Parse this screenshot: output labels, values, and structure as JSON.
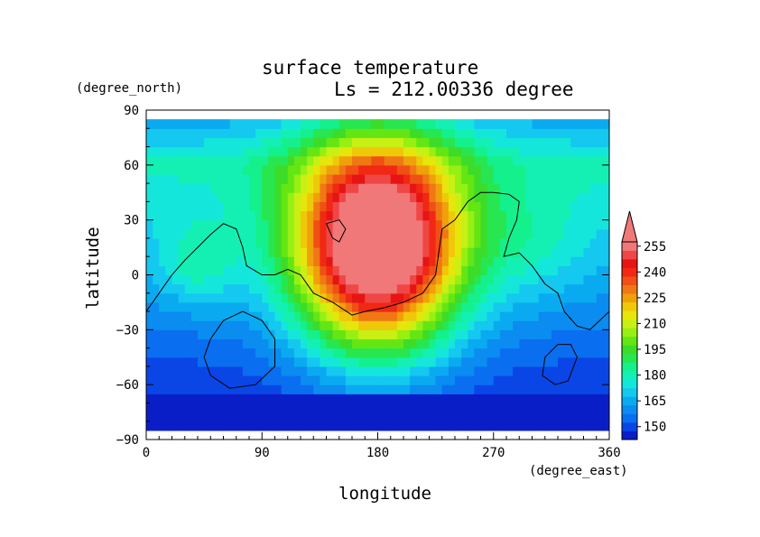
{
  "chart_data": {
    "type": "heatmap",
    "title": "surface temperature",
    "subtitle": "Ls = 212.00336 degree",
    "xlabel": "longitude",
    "ylabel": "latitude",
    "x_unit": "(degree_east)",
    "y_unit": "(degree_north)",
    "xlim": [
      0,
      360
    ],
    "ylim": [
      -90,
      90
    ],
    "data_lat_range": [
      -85,
      85
    ],
    "x_ticks": [
      0,
      90,
      180,
      270,
      360
    ],
    "y_ticks": [
      90,
      60,
      30,
      0,
      -30,
      -60,
      -90
    ],
    "x_tick_labels": [
      "0",
      "90",
      "180",
      "270",
      "360"
    ],
    "y_tick_labels": [
      "90",
      "60",
      "30",
      "0",
      "−30",
      "−60",
      "−90"
    ],
    "colorbar": {
      "levels": [
        145,
        150,
        155,
        160,
        165,
        170,
        175,
        180,
        185,
        190,
        195,
        200,
        205,
        210,
        215,
        220,
        225,
        230,
        235,
        240,
        245,
        250,
        255
      ],
      "colors": [
        "#0a1ec8",
        "#0a46e6",
        "#0a6ef0",
        "#0a8cf0",
        "#0aaaf0",
        "#14c8f0",
        "#14e6dc",
        "#14f0b4",
        "#14f08c",
        "#28e650",
        "#3cdc28",
        "#64e614",
        "#96f014",
        "#c8f014",
        "#e6e60a",
        "#f0c80a",
        "#f0a00a",
        "#f07814",
        "#f05014",
        "#f02814",
        "#e61414",
        "#f04646",
        "#f07878"
      ],
      "tick_labels": [
        "150",
        "165",
        "180",
        "195",
        "210",
        "225",
        "240",
        "255"
      ],
      "tick_values": [
        150,
        165,
        180,
        195,
        210,
        225,
        240,
        255
      ]
    },
    "field_blobs": [
      {
        "lon": 180,
        "lat": 15,
        "rx": 80,
        "ry": 70,
        "peak": 115
      },
      {
        "lon": 300,
        "lat": 15,
        "rx": 60,
        "ry": 40,
        "peak": 10
      },
      {
        "lon": 40,
        "lat": 5,
        "rx": 40,
        "ry": 30,
        "peak": 15
      }
    ],
    "south_cap_edge_lat": -66,
    "coastlines": [
      [
        [
          0,
          -20
        ],
        [
          10,
          -10
        ],
        [
          20,
          0
        ],
        [
          30,
          8
        ],
        [
          40,
          15
        ],
        [
          50,
          22
        ],
        [
          60,
          28
        ],
        [
          70,
          25
        ],
        [
          75,
          15
        ],
        [
          78,
          5
        ],
        [
          90,
          0
        ],
        [
          100,
          0
        ],
        [
          110,
          3
        ],
        [
          120,
          0
        ],
        [
          130,
          -10
        ],
        [
          145,
          -15
        ],
        [
          160,
          -22
        ],
        [
          170,
          -20
        ],
        [
          185,
          -18
        ],
        [
          200,
          -15
        ],
        [
          215,
          -10
        ],
        [
          225,
          0
        ],
        [
          228,
          15
        ],
        [
          230,
          25
        ],
        [
          240,
          30
        ],
        [
          250,
          40
        ],
        [
          260,
          45
        ],
        [
          270,
          45
        ],
        [
          282,
          44
        ],
        [
          290,
          40
        ],
        [
          288,
          30
        ],
        [
          282,
          20
        ],
        [
          278,
          10
        ],
        [
          290,
          12
        ],
        [
          300,
          5
        ],
        [
          310,
          -5
        ],
        [
          320,
          -10
        ],
        [
          325,
          -20
        ],
        [
          335,
          -28
        ],
        [
          345,
          -30
        ],
        [
          360,
          -20
        ]
      ],
      [
        [
          140,
          28
        ],
        [
          150,
          30
        ],
        [
          155,
          25
        ],
        [
          150,
          18
        ],
        [
          145,
          20
        ],
        [
          140,
          28
        ]
      ],
      [
        [
          50,
          -35
        ],
        [
          60,
          -25
        ],
        [
          75,
          -20
        ],
        [
          90,
          -25
        ],
        [
          100,
          -35
        ],
        [
          100,
          -50
        ],
        [
          85,
          -60
        ],
        [
          65,
          -62
        ],
        [
          50,
          -55
        ],
        [
          45,
          -45
        ],
        [
          50,
          -35
        ]
      ],
      [
        [
          310,
          -45
        ],
        [
          320,
          -38
        ],
        [
          330,
          -38
        ],
        [
          335,
          -45
        ],
        [
          328,
          -58
        ],
        [
          318,
          -60
        ],
        [
          308,
          -55
        ],
        [
          310,
          -45
        ]
      ]
    ]
  }
}
